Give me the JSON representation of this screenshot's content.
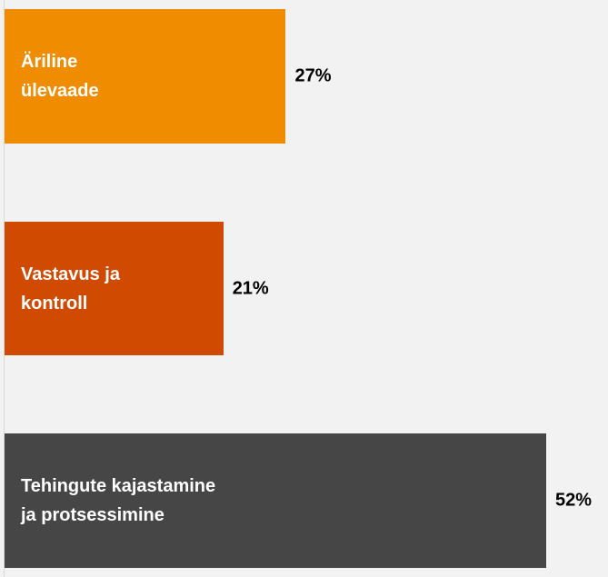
{
  "chart_data": {
    "type": "bar",
    "orientation": "horizontal",
    "categories": [
      "Äriline\nülevaade",
      "Vastavus ja\nkontroll",
      "Tehingute kajastamine\nja protsessimine"
    ],
    "values": [
      27,
      21,
      52
    ],
    "value_labels": [
      "27%",
      "21%",
      "52%"
    ],
    "colors": [
      "#ef8c00",
      "#d04a02",
      "#464646"
    ],
    "xlim": [
      0,
      52
    ]
  }
}
